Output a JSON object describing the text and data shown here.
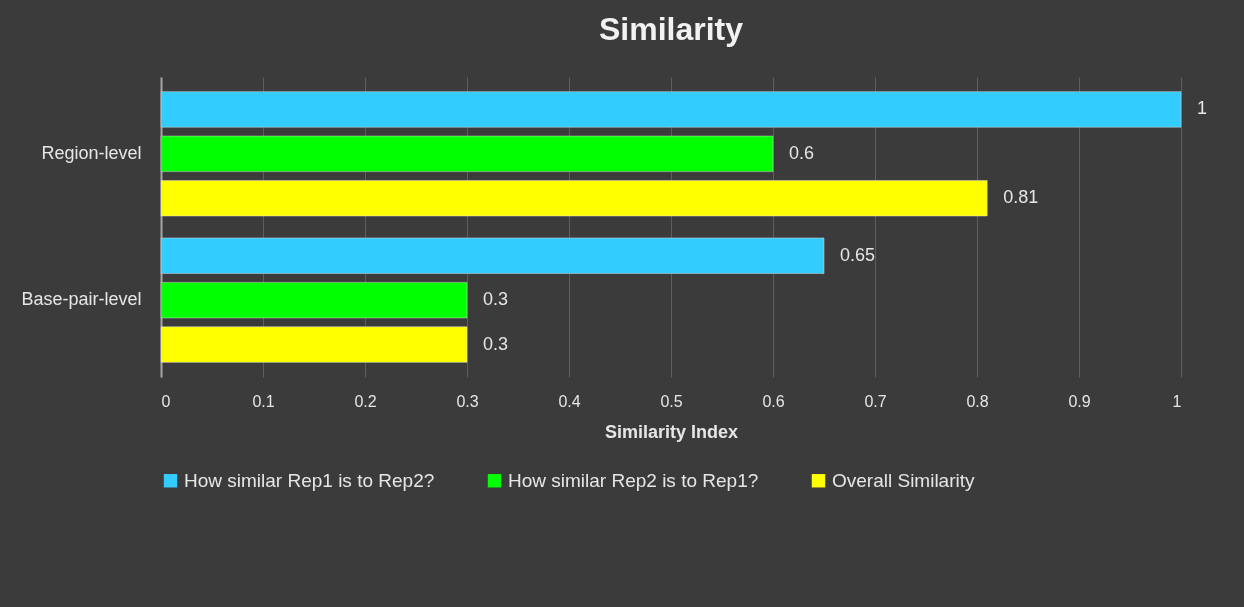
{
  "chart_data": {
    "type": "bar",
    "orientation": "horizontal",
    "title": "Similarity",
    "xlabel": "Similarity Index",
    "categories": [
      "Region-level",
      "Base-pair-level"
    ],
    "series": [
      {
        "name": "How similar Rep1 is to Rep2?",
        "color": "#33ccff",
        "values": [
          1,
          0.65
        ]
      },
      {
        "name": "How similar Rep2 is to Rep1?",
        "color": "#00ff00",
        "values": [
          0.6,
          0.3
        ]
      },
      {
        "name": "Overall Similarity",
        "color": "#ffff00",
        "values": [
          0.81,
          0.3
        ]
      }
    ],
    "xlim": [
      0,
      1
    ],
    "xticks": [
      0,
      0.1,
      0.2,
      0.3,
      0.4,
      0.5,
      0.6,
      0.7,
      0.8,
      0.9,
      1
    ],
    "grid": "x",
    "legend": "bottom",
    "data_labels": true
  }
}
